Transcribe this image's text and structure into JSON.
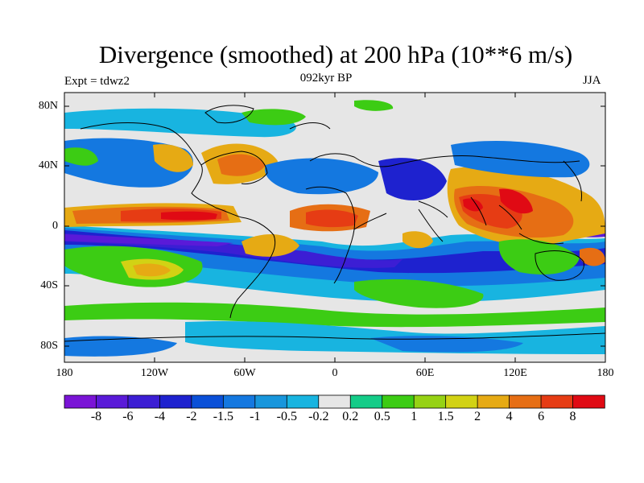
{
  "title": "Divergence (smoothed) at 200 hPa (10**6 m/s)",
  "subtitle": "092kyr BP",
  "experiment": "Expt = tdwz2",
  "season": "JJA",
  "map": {
    "projection": "cylindrical equidistant",
    "lat_labels": [
      "80N",
      "40N",
      "0",
      "40S",
      "80S"
    ],
    "lon_labels": [
      "180",
      "120W",
      "60W",
      "0",
      "60E",
      "120E",
      "180"
    ],
    "field": "divergence at 200 hPa, smoothed"
  },
  "colorbar": {
    "labels": [
      "-8",
      "-6",
      "-4",
      "-2",
      "-1.5",
      "-1",
      "-0.5",
      "-0.2",
      "0.2",
      "0.5",
      "1",
      "1.5",
      "2",
      "4",
      "6",
      "8"
    ],
    "colors": [
      "#7a14d6",
      "#5a1ad8",
      "#3c1ed4",
      "#1e22cf",
      "#0a50d8",
      "#1478e0",
      "#1896dc",
      "#18b4e0",
      "#e6e6e6",
      "#14cc88",
      "#3ccc14",
      "#96d214",
      "#d2d214",
      "#e6aa14",
      "#e66e14",
      "#e63c14",
      "#e00a14"
    ]
  }
}
